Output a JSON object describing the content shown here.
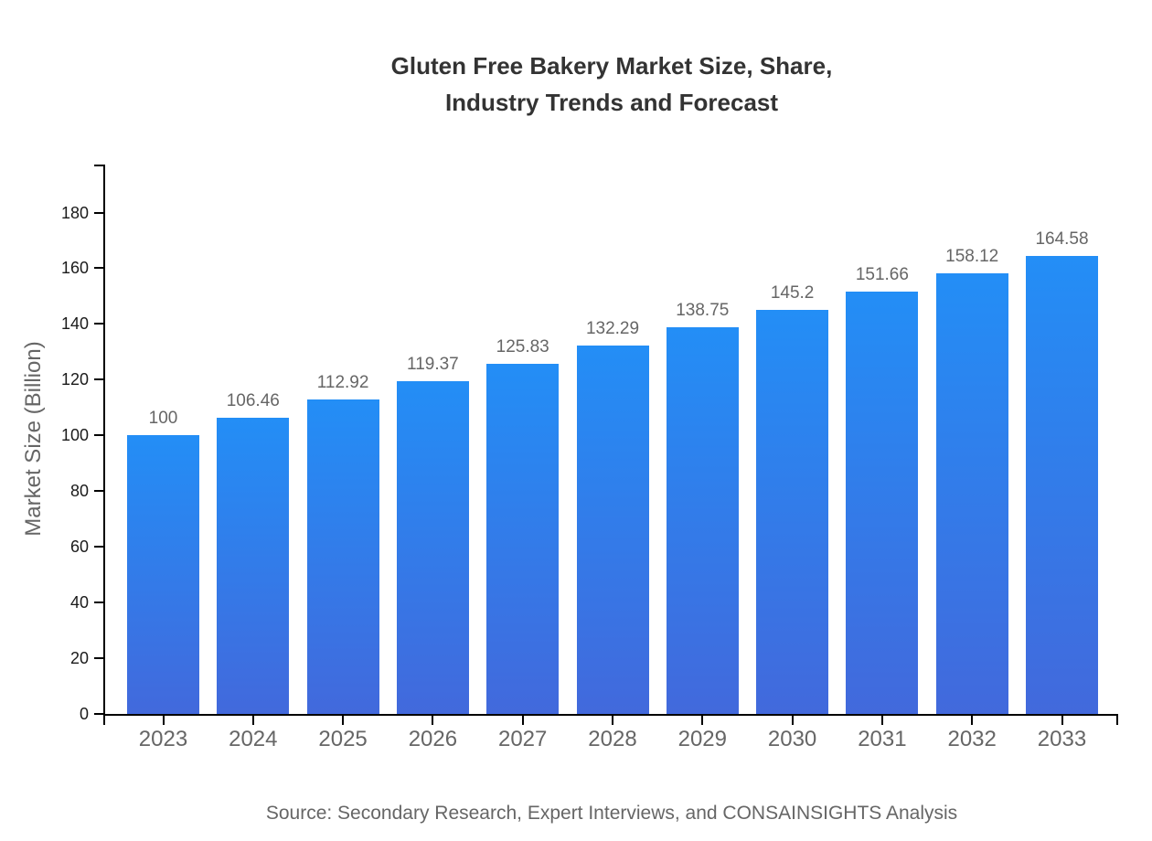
{
  "title": {
    "line1": "Gluten Free Bakery Market Size, Share,",
    "line2": "Industry Trends and Forecast"
  },
  "source": "Source: Secondary Research, Expert Interviews, and CONSAINSIGHTS Analysis",
  "colors": {
    "bar_gradient_top": "#238ef6",
    "bar_gradient_bottom": "#4269dc",
    "axis": "#000000",
    "y_tick_label": "#1a1a1a",
    "x_tick_label": "#666666",
    "value_label": "#666666",
    "title_text": "#333333",
    "muted_text": "#666666",
    "background": "#ffffff"
  },
  "chart_data": {
    "type": "bar",
    "title": "Gluten Free Bakery Market Size, Share, Industry Trends and Forecast",
    "categories": [
      "2023",
      "2024",
      "2025",
      "2026",
      "2027",
      "2028",
      "2029",
      "2030",
      "2031",
      "2032",
      "2033"
    ],
    "values": [
      100,
      106.46,
      112.92,
      119.37,
      125.83,
      132.29,
      138.75,
      145.2,
      151.66,
      158.12,
      164.58
    ],
    "xlabel": "",
    "ylabel": "Market Size (Billion)",
    "ylim": [
      0,
      197.4
    ],
    "yticks": [
      0,
      20,
      40,
      60,
      80,
      100,
      120,
      140,
      160,
      180
    ],
    "grid": false,
    "legend": false,
    "bar_value_labels_shown": true,
    "source_note": "Source: Secondary Research, Expert Interviews, and CONSAINSIGHTS Analysis"
  }
}
